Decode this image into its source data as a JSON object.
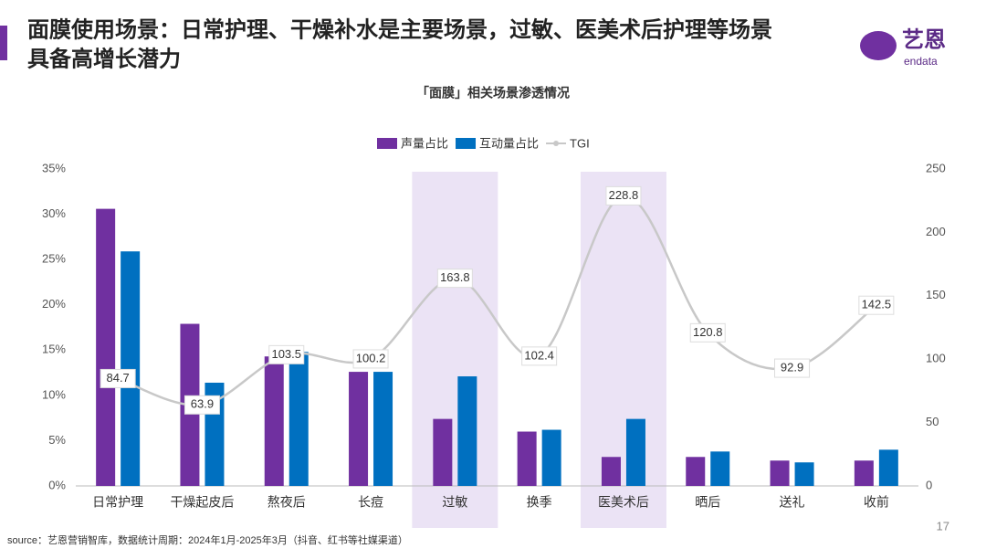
{
  "header": {
    "title_line1": "面膜使用场景：日常护理、干燥补水是主要场景，过敏、医美术后护理等场景",
    "title_line2": "具备高增长潜力",
    "logo_text": "艺恩",
    "logo_sub": "endata"
  },
  "chart_data": {
    "type": "bar",
    "title": "「面膜」相关场景渗透情况",
    "categories": [
      "日常护理",
      "干燥起皮后",
      "熬夜后",
      "长痘",
      "过敏",
      "换季",
      "医美术后",
      "晒后",
      "送礼",
      "收前"
    ],
    "series": [
      {
        "name": "声量占比",
        "color": "#7030a0",
        "type": "bar",
        "values": [
          30.6,
          17.9,
          14.3,
          12.6,
          7.4,
          6.0,
          3.2,
          3.2,
          2.8,
          2.8
        ]
      },
      {
        "name": "互动量占比",
        "color": "#0070c0",
        "type": "bar",
        "values": [
          25.9,
          11.4,
          14.8,
          12.6,
          12.1,
          6.2,
          7.4,
          3.8,
          2.6,
          4.0
        ]
      },
      {
        "name": "TGI",
        "color": "#c8c8c8",
        "type": "line",
        "axis": "y2",
        "values": [
          84.7,
          63.9,
          103.5,
          100.2,
          163.8,
          102.4,
          228.8,
          120.8,
          92.9,
          142.5
        ]
      }
    ],
    "ylim": [
      0,
      35
    ],
    "yticks": [
      {
        "value": 0,
        "label": "0%"
      },
      {
        "value": 5,
        "label": "5%"
      },
      {
        "value": 10,
        "label": "10%"
      },
      {
        "value": 15,
        "label": "15%"
      },
      {
        "value": 20,
        "label": "20%"
      },
      {
        "value": 25,
        "label": "25%"
      },
      {
        "value": 30,
        "label": "30%"
      },
      {
        "value": 35,
        "label": "35%"
      }
    ],
    "y2lim": [
      0,
      250
    ],
    "y2ticks": [
      0,
      50,
      100,
      150,
      200,
      250
    ],
    "highlight_indices": [
      4,
      6
    ],
    "highlight_color": "#ebe3f5",
    "legend": "top"
  },
  "footer": {
    "source": "source：艺恩营销智库，数据统计周期：2024年1月-2025年3月（抖音、红书等社媒渠道）",
    "page": "17"
  }
}
